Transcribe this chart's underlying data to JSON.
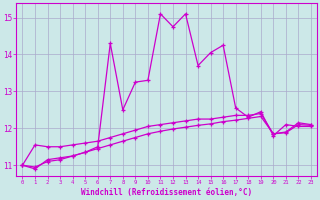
{
  "xlabel": "Windchill (Refroidissement éolien,°C)",
  "background_color": "#cce8e8",
  "grid_color": "#aaaacc",
  "line_color": "#cc00cc",
  "xlim": [
    -0.5,
    23.5
  ],
  "ylim": [
    10.7,
    15.4
  ],
  "yticks": [
    11,
    12,
    13,
    14,
    15
  ],
  "xticks": [
    0,
    1,
    2,
    3,
    4,
    5,
    6,
    7,
    8,
    9,
    10,
    11,
    12,
    13,
    14,
    15,
    16,
    17,
    18,
    19,
    20,
    21,
    22,
    23
  ],
  "series1_x": [
    0,
    1,
    2,
    3,
    4,
    5,
    6,
    7,
    8,
    9,
    10,
    11,
    12,
    13,
    14,
    15,
    16,
    17,
    18,
    19,
    20,
    21,
    22,
    23
  ],
  "series1_y": [
    11.0,
    10.9,
    11.15,
    11.2,
    11.25,
    11.35,
    11.5,
    14.3,
    12.5,
    13.25,
    13.3,
    15.1,
    14.75,
    15.1,
    13.7,
    14.05,
    14.25,
    12.55,
    12.3,
    12.45,
    11.8,
    12.1,
    12.05,
    12.05
  ],
  "series2_x": [
    0,
    1,
    2,
    3,
    4,
    5,
    6,
    7,
    8,
    9,
    10,
    11,
    12,
    13,
    14,
    15,
    16,
    17,
    18,
    19,
    20,
    21,
    22,
    23
  ],
  "series2_y": [
    11.0,
    11.55,
    11.5,
    11.5,
    11.55,
    11.6,
    11.65,
    11.75,
    11.85,
    11.95,
    12.05,
    12.1,
    12.15,
    12.2,
    12.25,
    12.25,
    12.3,
    12.35,
    12.35,
    12.4,
    11.85,
    11.9,
    12.15,
    12.1
  ],
  "series3_x": [
    0,
    1,
    2,
    3,
    4,
    5,
    6,
    7,
    8,
    9,
    10,
    11,
    12,
    13,
    14,
    15,
    16,
    17,
    18,
    19,
    20,
    21,
    22,
    23
  ],
  "series3_y": [
    11.0,
    10.95,
    11.1,
    11.15,
    11.25,
    11.35,
    11.45,
    11.55,
    11.65,
    11.75,
    11.85,
    11.92,
    11.98,
    12.03,
    12.08,
    12.12,
    12.18,
    12.22,
    12.27,
    12.32,
    11.85,
    11.88,
    12.1,
    12.08
  ]
}
